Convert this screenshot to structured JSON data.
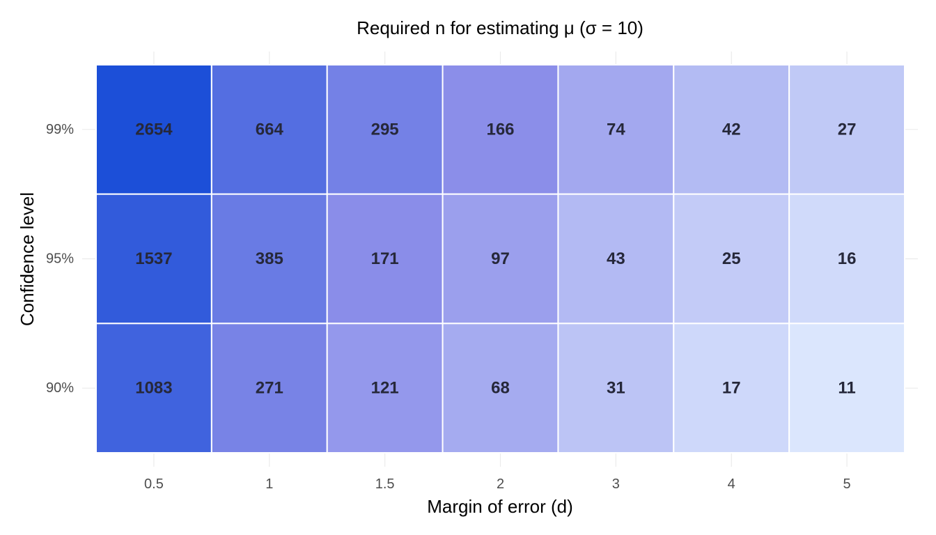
{
  "chart_data": {
    "type": "heatmap",
    "title": "Required n for estimating μ  (σ = 10)",
    "xlabel": "Margin of error (d)",
    "ylabel": "Confidence level",
    "x_categories": [
      "0.5",
      "1",
      "1.5",
      "2",
      "3",
      "4",
      "5"
    ],
    "y_categories": [
      "99%",
      "95%",
      "90%"
    ],
    "values": [
      [
        2654,
        664,
        295,
        166,
        74,
        42,
        27
      ],
      [
        1537,
        385,
        171,
        97,
        43,
        25,
        16
      ],
      [
        1083,
        271,
        121,
        68,
        31,
        17,
        11
      ]
    ],
    "color_scale": {
      "low": "#dbe6fd",
      "mid": "#8a8de9",
      "high": "#1c4fd8",
      "scale": "log"
    },
    "label_color": "#26283a",
    "grid": true,
    "legend": "none"
  }
}
